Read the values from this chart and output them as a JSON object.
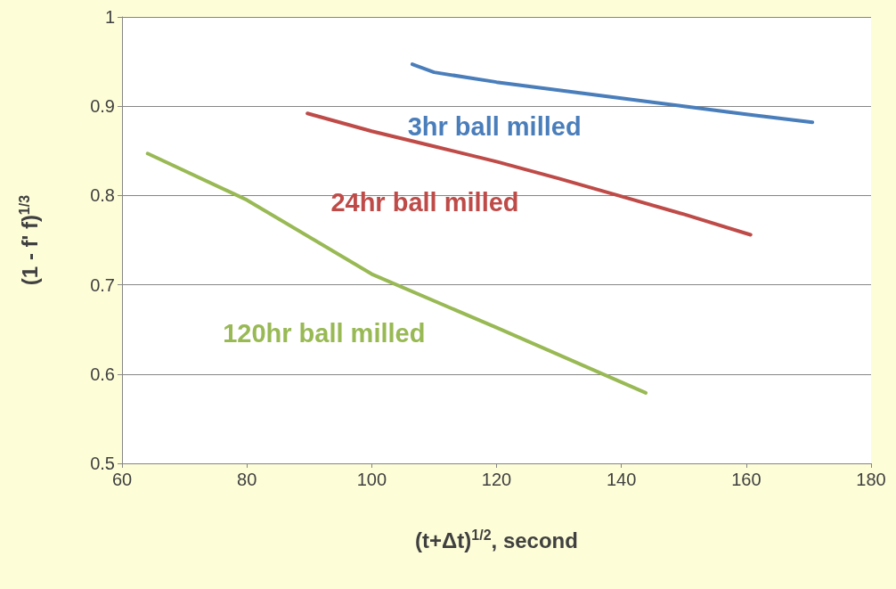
{
  "chart_data": {
    "type": "line",
    "xlabel": "(t+Δt)$^{1/2}$, second",
    "ylabel": "(1 - f' f)$^{1/3}$",
    "xlim": [
      60,
      180
    ],
    "xticks": [
      60,
      80,
      100,
      120,
      140,
      160,
      180
    ],
    "ylim": [
      0.5,
      1
    ],
    "yticks": [
      0.5,
      0.6,
      0.7,
      0.8,
      0.9,
      1
    ],
    "grid": "y",
    "marker": "none",
    "line_style": "solid",
    "series": [
      {
        "name": "3hr ball milled",
        "color": "#4a7ebb",
        "x": [
          106.5,
          110,
          120,
          130,
          140,
          150,
          160,
          170.6
        ],
        "values": [
          0.947,
          0.938,
          0.927,
          0.918,
          0.909,
          0.9,
          0.891,
          0.882
        ]
      },
      {
        "name": "24hr ball milled",
        "color": "#be4b48",
        "x": [
          89.7,
          100,
          110,
          120,
          130,
          140,
          150,
          160.7
        ],
        "values": [
          0.892,
          0.872,
          0.855,
          0.838,
          0.819,
          0.799,
          0.779,
          0.756
        ]
      },
      {
        "name": "120hr ball milled",
        "color": "#98b954",
        "x": [
          64.1,
          80,
          100,
          120,
          143.9
        ],
        "values": [
          0.847,
          0.795,
          0.712,
          0.652,
          0.579
        ]
      }
    ]
  }
}
